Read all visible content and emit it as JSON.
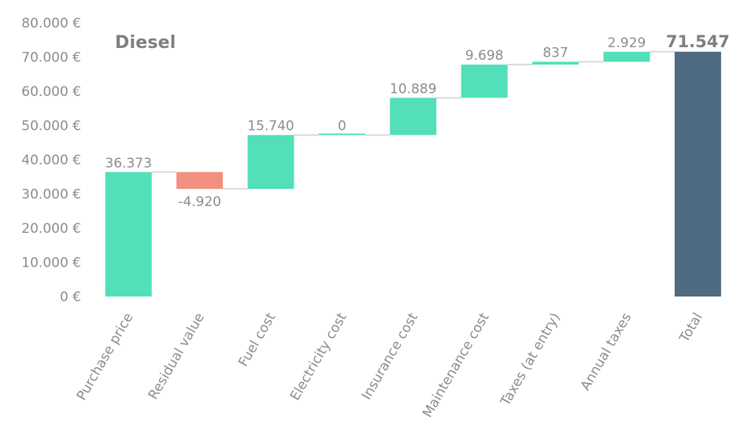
{
  "chart_data": {
    "type": "bar",
    "subtype": "waterfall",
    "title": "Diesel",
    "xlabel": "",
    "ylabel": "",
    "ylim": [
      0,
      80000
    ],
    "y_ticks": [
      "0 €",
      "10.000 €",
      "20.000 €",
      "30.000 €",
      "40.000 €",
      "50.000 €",
      "60.000 €",
      "70.000 €",
      "80.000 €"
    ],
    "categories": [
      "Purchase price",
      "Residual value",
      "Fuel cost",
      "Electricity cost",
      "Insurance cost",
      "Maintenance cost",
      "Taxes (at entry)",
      "Annual taxes",
      "Total"
    ],
    "values": [
      36373,
      -4920,
      15740,
      0,
      10889,
      9698,
      837,
      2929,
      71547
    ],
    "data_labels": [
      "36.373",
      "-4.920",
      "15.740",
      "0",
      "10.889",
      "9.698",
      "837",
      "2.929",
      "71.547"
    ],
    "is_total": [
      false,
      false,
      false,
      false,
      false,
      false,
      false,
      false,
      true
    ],
    "grid": false,
    "legend": "none",
    "colors": {
      "increase": "#52dfb9",
      "decrease": "#f28f7f",
      "total": "#4e6b82",
      "connector": "#d9d9d9",
      "text": "#8c8c8c"
    }
  }
}
